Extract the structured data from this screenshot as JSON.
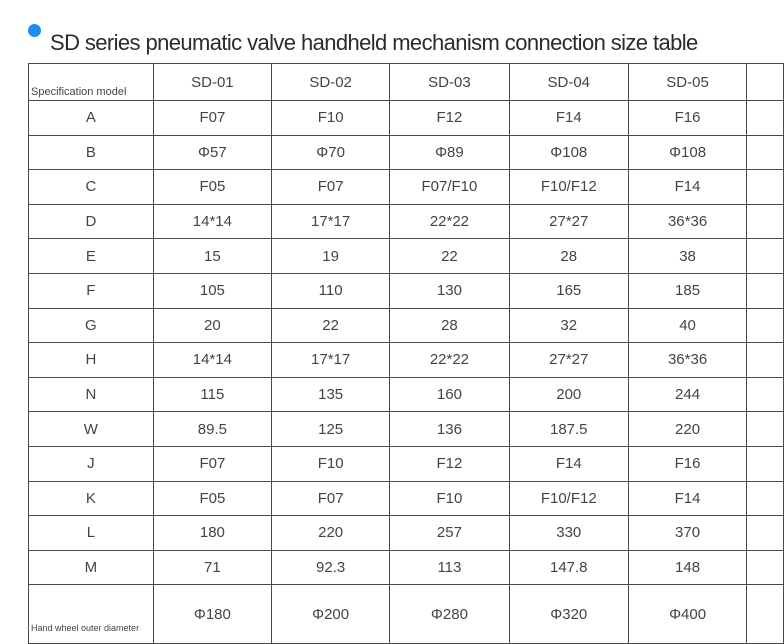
{
  "title": "SD series pneumatic valve handheld mechanism connection size table",
  "header": {
    "label": "Specification model",
    "models": [
      "SD-01",
      "SD-02",
      "SD-03",
      "SD-04",
      "SD-05"
    ]
  },
  "rows": [
    {
      "label": "A",
      "values": [
        "F07",
        "F10",
        "F12",
        "F14",
        "F16"
      ]
    },
    {
      "label": "B",
      "values": [
        "Φ57",
        "Φ70",
        "Φ89",
        "Φ108",
        "Φ108"
      ]
    },
    {
      "label": "C",
      "values": [
        "F05",
        "F07",
        "F07/F10",
        "F10/F12",
        "F14"
      ]
    },
    {
      "label": "D",
      "values": [
        "14*14",
        "17*17",
        "22*22",
        "27*27",
        "36*36"
      ]
    },
    {
      "label": "E",
      "values": [
        "15",
        "19",
        "22",
        "28",
        "38"
      ]
    },
    {
      "label": "F",
      "values": [
        "105",
        "110",
        "130",
        "165",
        "185"
      ]
    },
    {
      "label": "G",
      "values": [
        "20",
        "22",
        "28",
        "32",
        "40"
      ]
    },
    {
      "label": "H",
      "values": [
        "14*14",
        "17*17",
        "22*22",
        "27*27",
        "36*36"
      ]
    },
    {
      "label": "N",
      "values": [
        "115",
        "135",
        "160",
        "200",
        "244"
      ]
    },
    {
      "label": "W",
      "values": [
        "89.5",
        "125",
        "136",
        "187.5",
        "220"
      ]
    },
    {
      "label": "J",
      "values": [
        "F07",
        "F10",
        "F12",
        "F14",
        "F16"
      ]
    },
    {
      "label": "K",
      "values": [
        "F05",
        "F07",
        "F10",
        "F10/F12",
        "F14"
      ]
    },
    {
      "label": "L",
      "values": [
        "180",
        "220",
        "257",
        "330",
        "370"
      ]
    },
    {
      "label": "M",
      "values": [
        "71",
        "92.3",
        "113",
        "147.8",
        "148"
      ]
    }
  ],
  "last_row": {
    "label": "Hand wheel outer diameter",
    "values": [
      "Φ180",
      "Φ200",
      "Φ280",
      "Φ320",
      "Φ400"
    ]
  },
  "colors": {
    "bullet": "#1c8ef0",
    "border": "#4a4a4a",
    "text": "#444444"
  }
}
